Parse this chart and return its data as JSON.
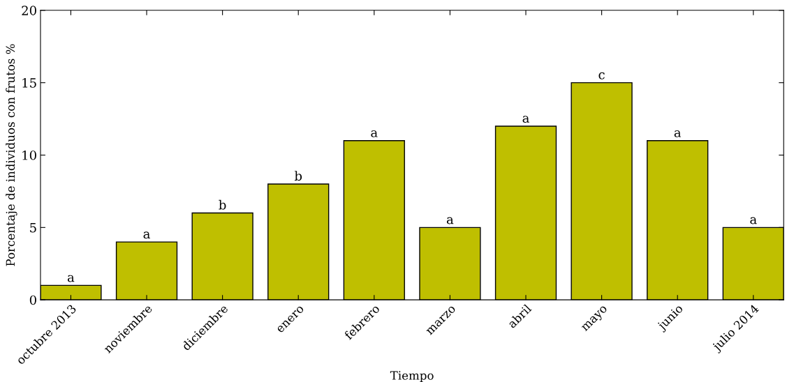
{
  "chart_data": {
    "type": "bar",
    "xlabel": "Tiempo",
    "ylabel": "Porcentaje de individuos con frutos %",
    "categories": [
      "octubre 2013",
      "noviembre",
      "diciembre",
      "enero",
      "febrero",
      "marzo",
      "abril",
      "mayo",
      "junio",
      "julio 2014"
    ],
    "values": [
      1,
      4,
      6,
      8,
      11,
      5,
      12,
      15,
      11,
      5
    ],
    "color": "#bfbf00",
    "ylim": [
      0,
      20
    ],
    "yticks": [
      0,
      5,
      10,
      15,
      20
    ],
    "grid": false,
    "annotations": [
      {
        "text": "a",
        "x": "octubre 2013",
        "y": 1
      },
      {
        "text": "a",
        "x": "noviembre",
        "y": 4
      },
      {
        "text": "b",
        "x": "diciembre",
        "y": 6
      },
      {
        "text": "b",
        "x": "enero",
        "y": 8
      },
      {
        "text": "a",
        "x": "febrero",
        "y": 11
      },
      {
        "text": "a",
        "x": "marzo",
        "y": 5
      },
      {
        "text": "a",
        "x": "abril",
        "y": 12
      },
      {
        "text": "c",
        "x": "mayo",
        "y": 15
      },
      {
        "text": "a",
        "x": "junio",
        "y": 11
      },
      {
        "text": "a",
        "x": "julio 2014",
        "y": 5
      }
    ]
  }
}
